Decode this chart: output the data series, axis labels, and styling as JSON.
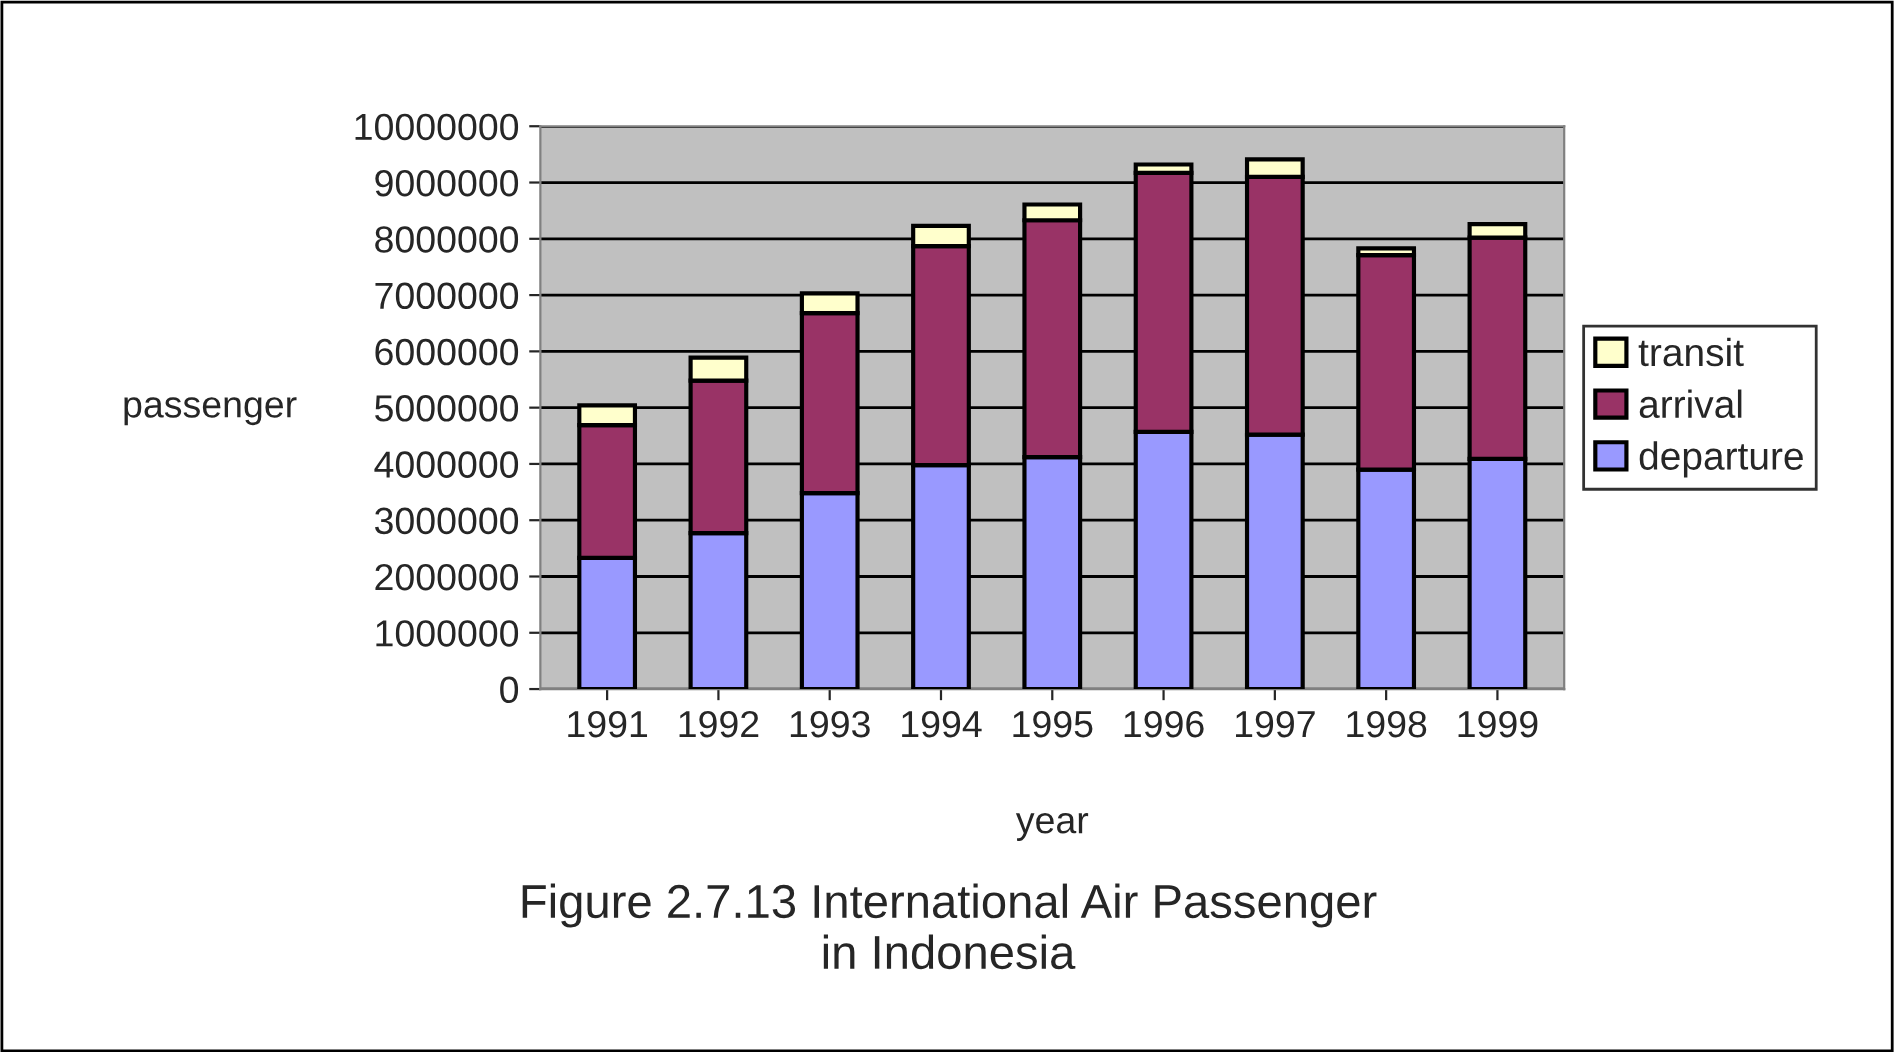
{
  "chart_data": {
    "type": "bar",
    "title": "Figure 2.7.13 International Air Passenger\nin Indonesia",
    "xlabel": "year",
    "ylabel": "passenger",
    "categories": [
      "1991",
      "1992",
      "1993",
      "1994",
      "1995",
      "1996",
      "1997",
      "1998",
      "1999"
    ],
    "stacked": true,
    "series": [
      {
        "name": "departure",
        "color": "#9999ff",
        "values": [
          2330000,
          2770000,
          3480000,
          3980000,
          4120000,
          4570000,
          4520000,
          3900000,
          4090000
        ]
      },
      {
        "name": "arrival",
        "color": "#993366",
        "values": [
          2360000,
          2710000,
          3200000,
          3890000,
          4210000,
          4600000,
          4580000,
          3810000,
          3930000
        ]
      },
      {
        "name": "transit",
        "color": "#ffffcc",
        "values": [
          350000,
          410000,
          350000,
          360000,
          280000,
          150000,
          310000,
          120000,
          240000
        ]
      }
    ],
    "ylim": [
      0,
      10000000
    ],
    "yticks": [
      0,
      1000000,
      2000000,
      3000000,
      4000000,
      5000000,
      6000000,
      7000000,
      8000000,
      9000000,
      10000000
    ],
    "grid": "y",
    "legend": "right"
  }
}
